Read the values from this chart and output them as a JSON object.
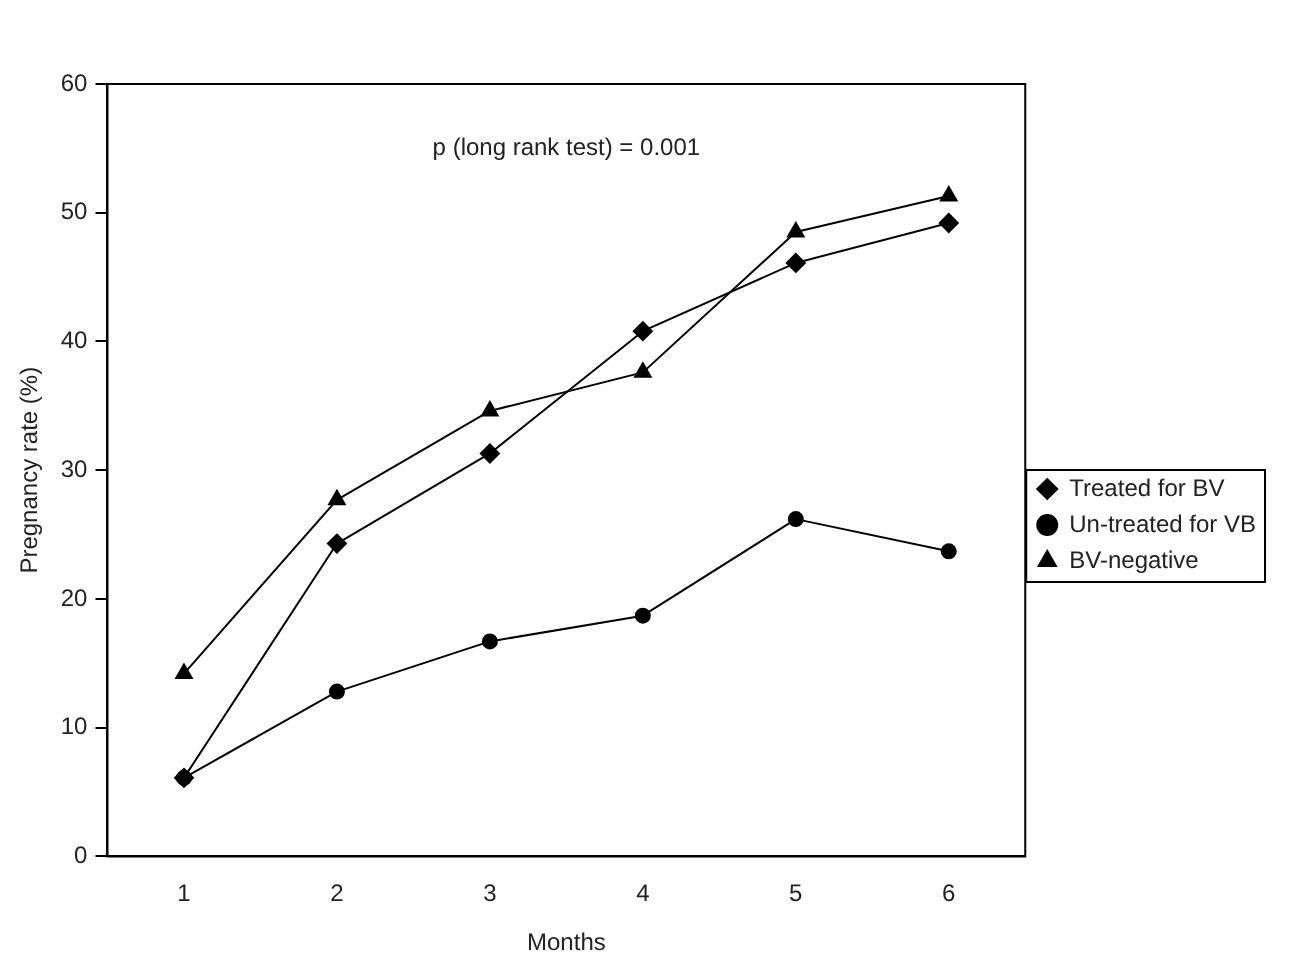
{
  "chart_data": {
    "type": "line",
    "xlabel": "Months",
    "ylabel": "Pregnancy rate (%)",
    "annotations": [
      "p (long rank test) = 0.001"
    ],
    "categories": [
      "1",
      "2",
      "3",
      "4",
      "5",
      "6"
    ],
    "series": [
      {
        "name": "Treated for BV",
        "color": "#000000",
        "marker": "diamond",
        "values": [
          6.1,
          24.3,
          31.3,
          40.8,
          46.1,
          49.2
        ]
      },
      {
        "name": "Un-treated for VB",
        "color": "#000000",
        "marker": "circle",
        "values": [
          6.1,
          12.8,
          16.7,
          18.7,
          26.2,
          23.7
        ]
      },
      {
        "name": "BV-negative",
        "color": "#000000",
        "marker": "triangle",
        "values": [
          14.2,
          27.7,
          34.6,
          37.6,
          48.5,
          51.3
        ]
      }
    ],
    "ylim": [
      0,
      60
    ],
    "yticks": [
      0,
      10,
      20,
      30,
      40,
      50,
      60
    ],
    "grid": false,
    "legend": "right",
    "line_style": "solid"
  }
}
